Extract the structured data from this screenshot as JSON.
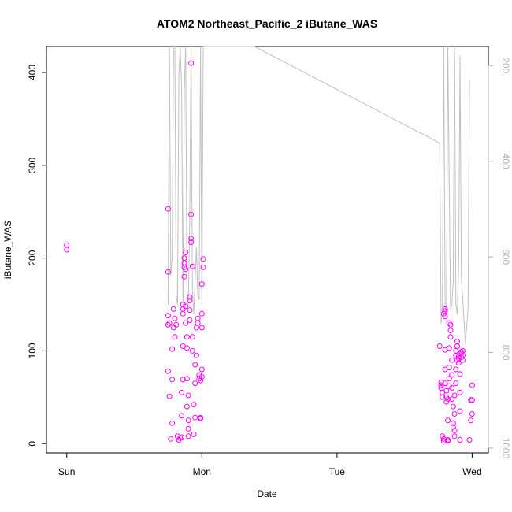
{
  "chart_data": {
    "type": "scatter",
    "title": "ATOM2 Northeast_Pacific_2 iButane_WAS",
    "xlabel": "Date",
    "ylabel": "iButane_WAS",
    "x_unit": "days",
    "x_ticks": [
      {
        "value": 0,
        "label": "Sun"
      },
      {
        "value": 1,
        "label": "Mon"
      },
      {
        "value": 2,
        "label": "Tue"
      },
      {
        "value": 3,
        "label": "Wed"
      }
    ],
    "xlim": [
      -0.15,
      3.12
    ],
    "ylim": [
      -10,
      428
    ],
    "y_ticks": [
      0,
      100,
      200,
      300,
      400
    ],
    "y2_ticks": [
      200,
      400,
      600,
      800,
      1000
    ],
    "y2lim": [
      1010,
      160
    ],
    "grid": false,
    "colors": {
      "points": "#ff00ff",
      "pressure_line": "#c0c0c0",
      "axis": "#000000",
      "y2_axis": "#b0b0b0"
    },
    "series": [
      {
        "kind": "points",
        "points": [
          [
            0.0,
            214
          ],
          [
            0.0,
            209
          ],
          [
            0.75,
            253
          ],
          [
            0.75,
            185
          ],
          [
            0.75,
            138
          ],
          [
            0.75,
            128
          ],
          [
            0.76,
            130
          ],
          [
            0.75,
            78
          ],
          [
            0.76,
            51
          ],
          [
            0.77,
            5
          ],
          [
            0.78,
            22
          ],
          [
            0.78,
            69
          ],
          [
            0.78,
            102
          ],
          [
            0.79,
            125
          ],
          [
            0.79,
            145
          ],
          [
            0.8,
            135
          ],
          [
            0.8,
            115
          ],
          [
            0.81,
            128
          ],
          [
            0.82,
            8
          ],
          [
            0.83,
            4
          ],
          [
            0.84,
            6
          ],
          [
            0.85,
            7
          ],
          [
            0.85,
            30
          ],
          [
            0.85,
            55
          ],
          [
            0.86,
            69
          ],
          [
            0.86,
            105
          ],
          [
            0.86,
            140
          ],
          [
            0.86,
            145
          ],
          [
            0.86,
            150
          ],
          [
            0.87,
            200
          ],
          [
            0.87,
            195
          ],
          [
            0.87,
            190
          ],
          [
            0.87,
            180
          ],
          [
            0.88,
            188
          ],
          [
            0.88,
            206
          ],
          [
            0.88,
            148
          ],
          [
            0.88,
            130
          ],
          [
            0.89,
            115
          ],
          [
            0.89,
            103
          ],
          [
            0.89,
            70
          ],
          [
            0.89,
            40
          ],
          [
            0.9,
            25
          ],
          [
            0.9,
            16
          ],
          [
            0.9,
            8
          ],
          [
            0.9,
            52
          ],
          [
            0.91,
            158
          ],
          [
            0.91,
            154
          ],
          [
            0.91,
            144
          ],
          [
            0.91,
            133
          ],
          [
            0.92,
            410
          ],
          [
            0.92,
            247
          ],
          [
            0.92,
            221
          ],
          [
            0.92,
            217
          ],
          [
            0.93,
            191
          ],
          [
            0.93,
            115
          ],
          [
            0.93,
            100
          ],
          [
            0.94,
            42
          ],
          [
            0.94,
            10
          ],
          [
            0.95,
            28
          ],
          [
            0.95,
            65
          ],
          [
            0.95,
            85
          ],
          [
            0.96,
            95
          ],
          [
            0.96,
            125
          ],
          [
            0.97,
            130
          ],
          [
            0.97,
            135
          ],
          [
            0.98,
            70
          ],
          [
            0.98,
            74
          ],
          [
            0.99,
            68
          ],
          [
            0.99,
            28
          ],
          [
            0.99,
            27
          ],
          [
            1.0,
            72
          ],
          [
            1.0,
            80
          ],
          [
            1.0,
            125
          ],
          [
            1.0,
            140
          ],
          [
            1.0,
            172
          ],
          [
            1.01,
            190
          ],
          [
            1.01,
            199
          ],
          [
            2.76,
            105
          ],
          [
            2.77,
            66
          ],
          [
            2.77,
            63
          ],
          [
            2.77,
            60
          ],
          [
            2.78,
            55
          ],
          [
            2.78,
            50
          ],
          [
            2.78,
            8
          ],
          [
            2.79,
            5
          ],
          [
            2.79,
            3
          ],
          [
            2.79,
            140
          ],
          [
            2.8,
            143
          ],
          [
            2.8,
            137
          ],
          [
            2.8,
            145
          ],
          [
            2.8,
            101
          ],
          [
            2.8,
            80
          ],
          [
            2.8,
            65
          ],
          [
            2.81,
            57
          ],
          [
            2.81,
            50
          ],
          [
            2.81,
            45
          ],
          [
            2.82,
            25
          ],
          [
            2.82,
            4
          ],
          [
            2.82,
            3
          ],
          [
            2.82,
            48
          ],
          [
            2.83,
            62
          ],
          [
            2.83,
            70
          ],
          [
            2.83,
            82
          ],
          [
            2.83,
            103
          ],
          [
            2.83,
            130
          ],
          [
            2.84,
            128
          ],
          [
            2.84,
            122
          ],
          [
            2.84,
            115
          ],
          [
            2.85,
            90
          ],
          [
            2.85,
            74
          ],
          [
            2.85,
            60
          ],
          [
            2.85,
            48
          ],
          [
            2.86,
            40
          ],
          [
            2.86,
            22
          ],
          [
            2.86,
            18
          ],
          [
            2.87,
            8
          ],
          [
            2.87,
            14
          ],
          [
            2.87,
            32
          ],
          [
            2.87,
            52
          ],
          [
            2.88,
            65
          ],
          [
            2.88,
            80
          ],
          [
            2.88,
            95
          ],
          [
            2.88,
            100
          ],
          [
            2.89,
            105
          ],
          [
            2.89,
            110
          ],
          [
            2.89,
            90
          ],
          [
            2.9,
            92
          ],
          [
            2.9,
            94
          ],
          [
            2.9,
            87
          ],
          [
            2.91,
            75
          ],
          [
            2.91,
            55
          ],
          [
            2.91,
            35
          ],
          [
            2.91,
            4
          ],
          [
            2.92,
            97
          ],
          [
            2.92,
            99
          ],
          [
            2.92,
            93
          ],
          [
            2.93,
            95
          ],
          [
            2.93,
            100
          ],
          [
            2.93,
            90
          ],
          [
            2.98,
            4
          ],
          [
            2.99,
            25
          ],
          [
            2.99,
            47
          ],
          [
            3.0,
            63
          ],
          [
            3.0,
            32
          ],
          [
            3.0,
            47
          ]
        ]
      },
      {
        "kind": "line",
        "axis": "y2",
        "points": [
          [
            0.75,
            700
          ],
          [
            0.76,
            170
          ],
          [
            0.76,
            160
          ],
          [
            0.77,
            640
          ],
          [
            0.78,
            600
          ],
          [
            0.79,
            160
          ],
          [
            0.8,
            160
          ],
          [
            0.81,
            680
          ],
          [
            0.82,
            700
          ],
          [
            0.83,
            220
          ],
          [
            0.84,
            160
          ],
          [
            0.85,
            250
          ],
          [
            0.86,
            710
          ],
          [
            0.87,
            250
          ],
          [
            0.88,
            160
          ],
          [
            0.89,
            670
          ],
          [
            0.9,
            700
          ],
          [
            0.91,
            520
          ],
          [
            0.92,
            160
          ],
          [
            0.93,
            670
          ],
          [
            0.94,
            720
          ],
          [
            0.95,
            650
          ],
          [
            0.96,
            580
          ],
          [
            0.97,
            680
          ],
          [
            0.98,
            690
          ],
          [
            0.99,
            160
          ],
          [
            1.0,
            700
          ],
          [
            1.01,
            160
          ],
          [
            1.39,
            160
          ],
          [
            2.76,
            362
          ],
          [
            2.77,
            740
          ],
          [
            2.78,
            700
          ],
          [
            2.79,
            160
          ],
          [
            2.8,
            700
          ],
          [
            2.81,
            720
          ],
          [
            2.82,
            160
          ],
          [
            2.84,
            710
          ],
          [
            2.85,
            700
          ],
          [
            2.86,
            650
          ],
          [
            2.87,
            160
          ],
          [
            2.88,
            700
          ],
          [
            2.89,
            720
          ],
          [
            2.9,
            620
          ],
          [
            2.91,
            180
          ],
          [
            2.92,
            640
          ],
          [
            2.95,
            780
          ],
          [
            2.97,
            710
          ],
          [
            2.98,
            230
          ]
        ]
      }
    ]
  }
}
